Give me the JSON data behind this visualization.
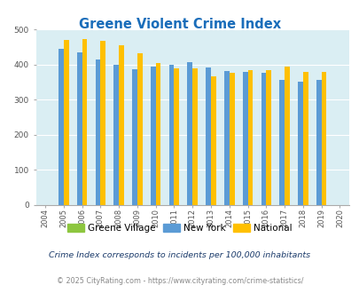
{
  "title": "Greene Violent Crime Index",
  "years": [
    2004,
    2005,
    2006,
    2007,
    2008,
    2009,
    2010,
    2011,
    2012,
    2013,
    2014,
    2015,
    2016,
    2017,
    2018,
    2019,
    2020
  ],
  "new_york": [
    null,
    445,
    435,
    415,
    400,
    387,
    394,
    400,
    406,
    391,
    382,
    380,
    377,
    356,
    350,
    357,
    null
  ],
  "national": [
    null,
    470,
    473,
    467,
    455,
    433,
    405,
    389,
    389,
    367,
    377,
    383,
    383,
    395,
    379,
    379,
    null
  ],
  "ylim": [
    0,
    500
  ],
  "yticks": [
    0,
    100,
    200,
    300,
    400,
    500
  ],
  "bar_width": 0.28,
  "color_greene": "#8dc63f",
  "color_ny": "#5b9bd5",
  "color_national": "#ffc000",
  "bg_color": "#daeef3",
  "title_color": "#1a6dba",
  "subtitle_color": "#1a3a6a",
  "footer_color": "#888888",
  "subtitle": "Crime Index corresponds to incidents per 100,000 inhabitants",
  "footer": "© 2025 CityRating.com - https://www.cityrating.com/crime-statistics/"
}
